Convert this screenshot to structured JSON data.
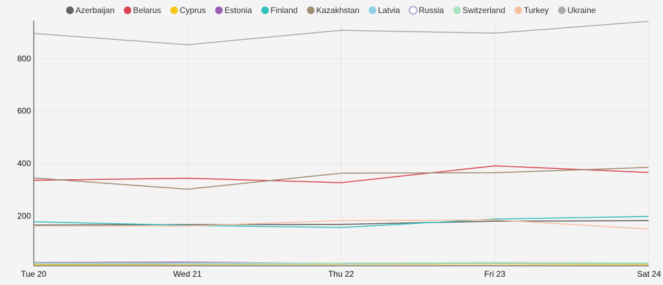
{
  "chart_data": {
    "type": "line",
    "title": "",
    "xlabel": "",
    "ylabel": "",
    "categories": [
      "Tue 20",
      "Wed 21",
      "Thu 22",
      "Fri 23",
      "Sat 24"
    ],
    "y_ticks": [
      "200",
      "400",
      "600",
      "800"
    ],
    "ylim": [
      10,
      945
    ],
    "grid": true,
    "legend_position": "top",
    "series": [
      {
        "name": "Azerbaijan",
        "color": "#616161",
        "marker": "filled",
        "values": [
          165,
          167,
          168,
          180,
          182
        ]
      },
      {
        "name": "Belarus",
        "color": "#d94652",
        "marker": "filled",
        "values": [
          336,
          344,
          327,
          391,
          366
        ]
      },
      {
        "name": "Cyprus",
        "color": "#f5c518",
        "marker": "filled",
        "values": [
          14,
          15,
          16,
          17,
          15
        ]
      },
      {
        "name": "Estonia",
        "color": "#9b59b6",
        "marker": "filled",
        "values": [
          22,
          24,
          18,
          21,
          20
        ]
      },
      {
        "name": "Finland",
        "color": "#35c0bd",
        "marker": "filled",
        "values": [
          178,
          164,
          156,
          188,
          198
        ]
      },
      {
        "name": "Kazakhstan",
        "color": "#a08b73",
        "marker": "filled",
        "values": [
          345,
          302,
          363,
          365,
          385
        ]
      },
      {
        "name": "Latvia",
        "color": "#8ecfe3",
        "marker": "filled",
        "values": [
          18,
          17,
          18,
          20,
          19
        ]
      },
      {
        "name": "Russia",
        "color": "#b3aed4",
        "marker": "hollow",
        "values": [
          20,
          21,
          20,
          22,
          21
        ]
      },
      {
        "name": "Switzerland",
        "color": "#a8e3c0",
        "marker": "filled",
        "values": [
          20,
          19,
          20,
          22,
          21
        ]
      },
      {
        "name": "Turkey",
        "color": "#f7bfa0",
        "marker": "filled",
        "values": [
          162,
          162,
          182,
          185,
          150
        ]
      },
      {
        "name": "Ukraine",
        "color": "#ababab",
        "marker": "filled",
        "values": [
          896,
          853,
          908,
          897,
          942
        ]
      }
    ]
  }
}
